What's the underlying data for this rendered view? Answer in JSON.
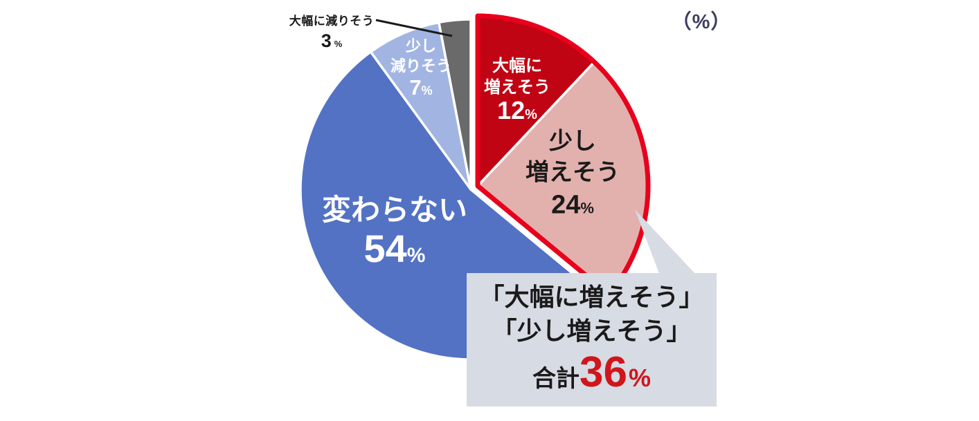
{
  "chart_data": {
    "type": "pie",
    "unit_label": "（%）",
    "start_angle_deg": 0,
    "direction": "clockwise",
    "percent_sign": "%",
    "slices": [
      {
        "label": "大幅に増えそう",
        "label_lines": [
          "大幅に",
          "増えそう"
        ],
        "value": 12,
        "color": "#c00414",
        "text_color": "#ffffff",
        "label_placement": "inside"
      },
      {
        "label": "少し増えそう",
        "label_lines": [
          "少し",
          "増えそう"
        ],
        "value": 24,
        "color": "#e2b1ad",
        "text_color": "#1a1a1a",
        "label_placement": "inside"
      },
      {
        "label": "変わらない",
        "label_lines": [
          "変わらない"
        ],
        "value": 54,
        "color": "#5372c4",
        "text_color": "#ffffff",
        "label_placement": "inside"
      },
      {
        "label": "少し減りそう",
        "label_lines": [
          "少し",
          "減りそう"
        ],
        "value": 7,
        "color": "#a2b5e2",
        "text_color": "#ffffff",
        "label_placement": "inside"
      },
      {
        "label": "大幅に減りそう",
        "label_lines": [
          "大幅に減りそう"
        ],
        "value": 3,
        "color": "#6a6a6a",
        "text_color": "#1a1a1a",
        "label_placement": "outside"
      }
    ],
    "highlight_group": {
      "slice_labels": [
        "大幅に増えそう",
        "少し増えそう"
      ],
      "outline_color": "#e8001c",
      "total_value": 36
    }
  },
  "callout": {
    "line1": "「大幅に増えそう」",
    "line2": "「少し増えそう」",
    "total_prefix": "合計",
    "total_value": "36",
    "percent_sign": "%",
    "value_color": "#d0151b",
    "background": "#d7dbe3"
  }
}
